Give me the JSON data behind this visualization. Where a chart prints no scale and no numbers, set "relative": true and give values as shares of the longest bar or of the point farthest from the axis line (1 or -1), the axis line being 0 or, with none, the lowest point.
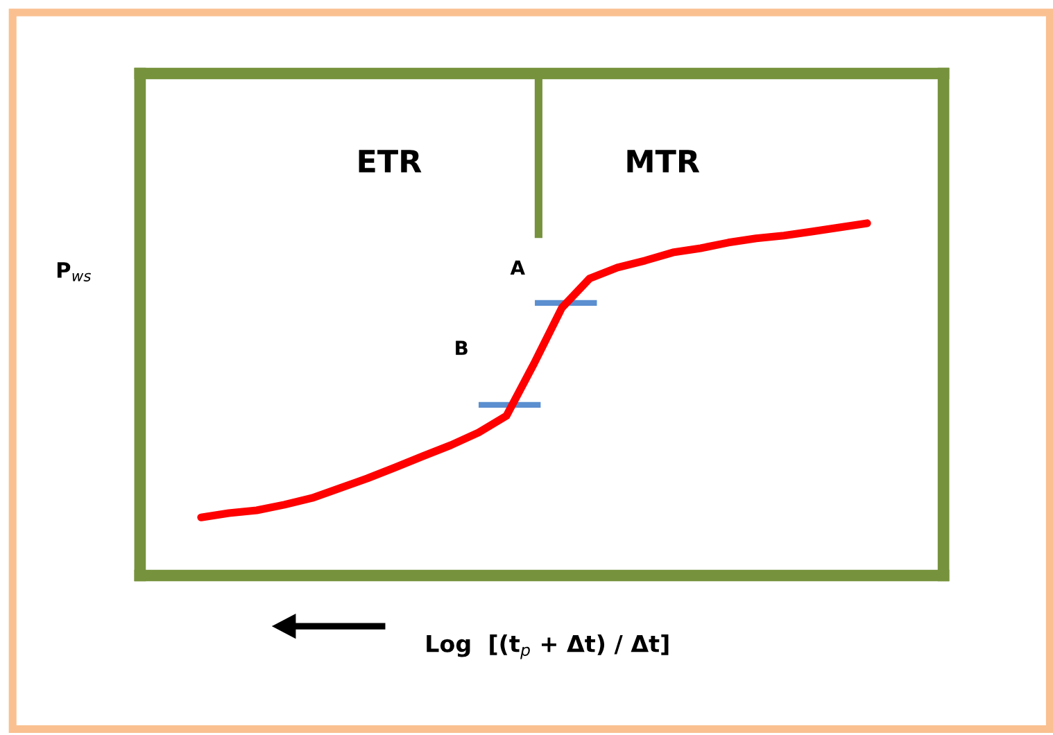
{
  "chart_data": {
    "type": "line",
    "relative": true,
    "xlabel": "Log  [(t$_{p}$ + Δt) / Δt]",
    "ylabel": "P$_{ws}$",
    "categories": [
      null,
      null,
      null,
      null,
      null,
      null,
      null,
      null,
      null,
      null,
      null,
      null,
      null,
      null,
      null,
      null,
      null,
      null,
      null,
      null,
      null,
      null,
      null,
      null,
      null
    ],
    "series": [
      {
        "color": "#ff0000",
        "values": [
          0.165,
          0.177,
          0.185,
          0.201,
          0.22,
          0.248,
          0.276,
          0.307,
          0.339,
          0.37,
          0.406,
          0.453,
          0.602,
          0.76,
          0.843,
          0.874,
          0.894,
          0.917,
          0.929,
          0.945,
          0.957,
          0.965,
          0.976,
          0.988,
          1.0
        ]
      }
    ],
    "annotations": [
      "ETR",
      "MTR",
      "A",
      "B"
    ]
  }
}
